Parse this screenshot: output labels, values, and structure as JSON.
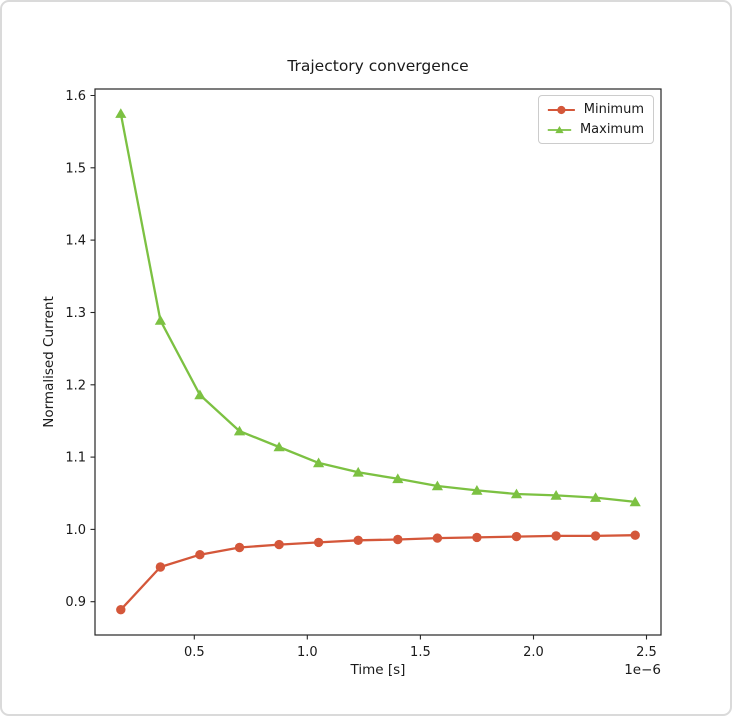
{
  "figure": {
    "background": "#ffffff",
    "border_color": "#dadada"
  },
  "chart_data": {
    "type": "line",
    "title": "Trajectory convergence",
    "xlabel": "Time [s]",
    "ylabel": "Normalised Current",
    "x_offset_label": "1e−6",
    "x_unit_scale": 1e-06,
    "grid": false,
    "legend_position": "upper right",
    "axis_color": "#262626",
    "text_color": "#1a1a1a",
    "x_us": [
      0.175,
      0.35,
      0.525,
      0.7,
      0.875,
      1.05,
      1.225,
      1.4,
      1.575,
      1.75,
      1.925,
      2.1,
      2.275,
      2.45
    ],
    "series": [
      {
        "name": "Minimum",
        "color": "#d4573a",
        "marker": "circle",
        "values": [
          0.889,
          0.948,
          0.965,
          0.975,
          0.979,
          0.982,
          0.985,
          0.986,
          0.988,
          0.989,
          0.99,
          0.991,
          0.991,
          0.992
        ]
      },
      {
        "name": "Maximum",
        "color": "#7cc142",
        "marker": "triangle",
        "values": [
          1.575,
          1.289,
          1.186,
          1.136,
          1.114,
          1.092,
          1.079,
          1.07,
          1.06,
          1.054,
          1.049,
          1.047,
          1.044,
          1.038
        ]
      }
    ],
    "xlim_us": [
      0.061,
      2.564
    ],
    "ylim": [
      0.854,
      1.609
    ],
    "xticks_us": [
      0.5,
      1.0,
      1.5,
      2.0,
      2.5
    ],
    "xtick_labels": [
      "0.5",
      "1.0",
      "1.5",
      "2.0",
      "2.5"
    ],
    "yticks": [
      0.9,
      1.0,
      1.1,
      1.2,
      1.3,
      1.4,
      1.5,
      1.6
    ],
    "ytick_labels": [
      "0.9",
      "1.0",
      "1.1",
      "1.2",
      "1.3",
      "1.4",
      "1.5",
      "1.6"
    ]
  }
}
